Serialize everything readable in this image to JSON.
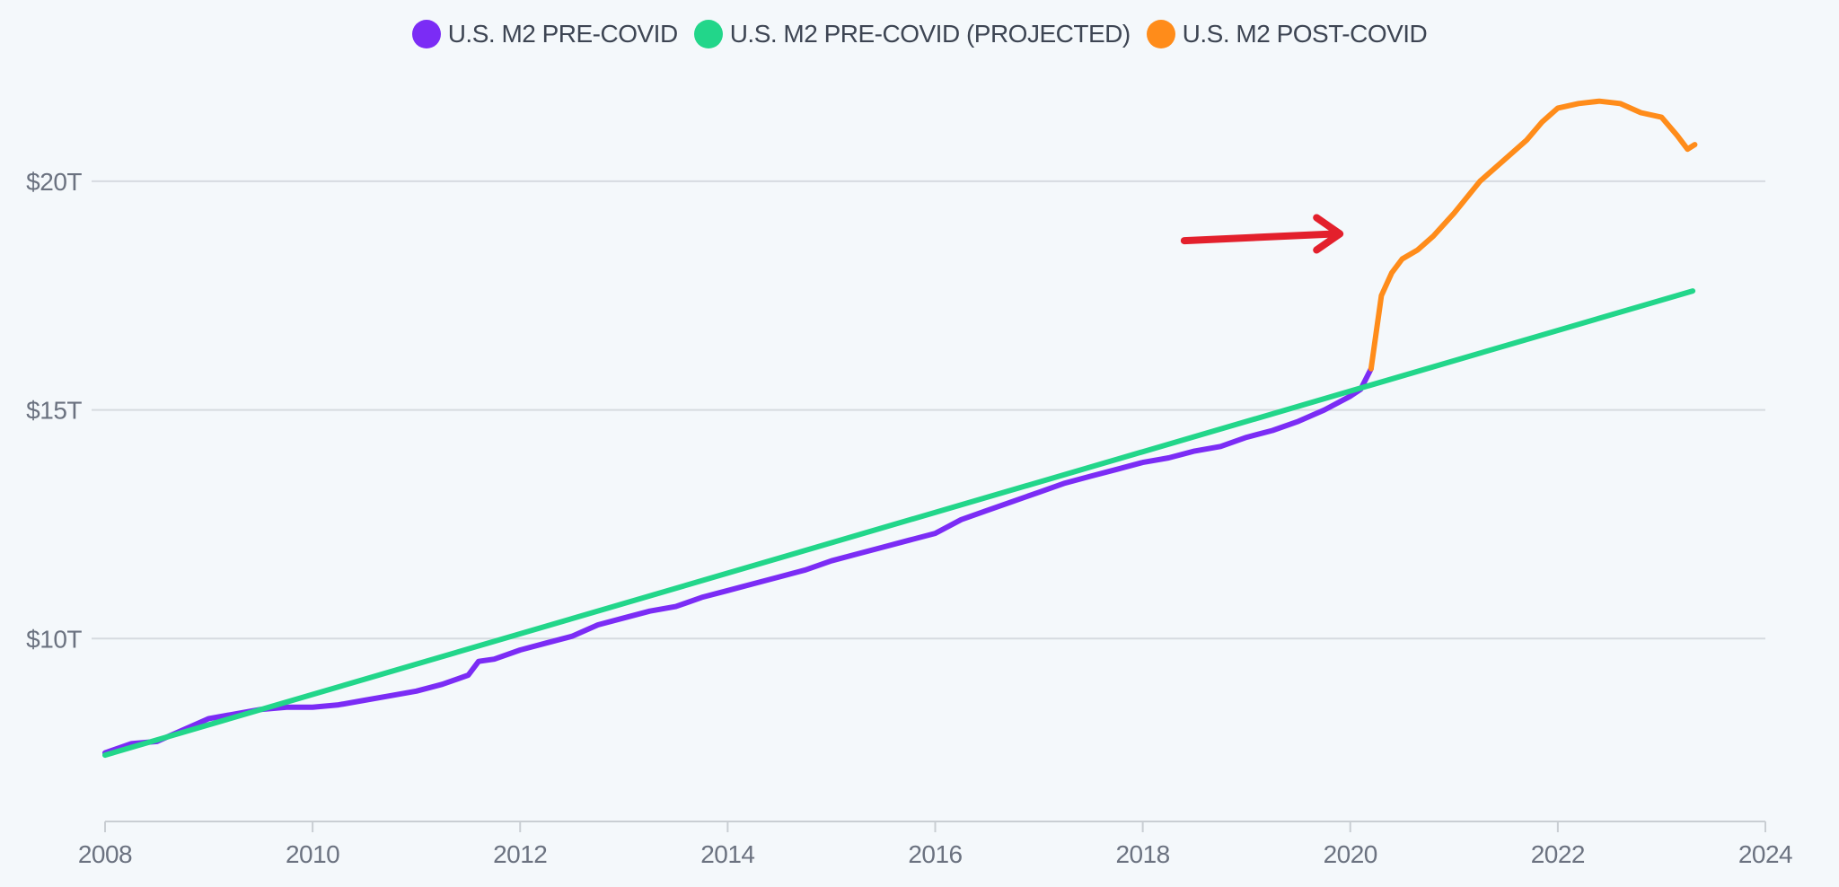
{
  "chart_data": {
    "type": "line",
    "title": "",
    "xlabel": "",
    "ylabel": "",
    "xlim": [
      2008,
      2024
    ],
    "ylim": [
      6,
      22
    ],
    "x_ticks": [
      2008,
      2010,
      2012,
      2014,
      2016,
      2018,
      2020,
      2022,
      2024
    ],
    "x_tick_labels": [
      "2008",
      "2010",
      "2012",
      "2014",
      "2016",
      "2018",
      "2020",
      "2022",
      "2024"
    ],
    "y_ticks": [
      10,
      15,
      20
    ],
    "y_tick_labels": [
      "$10T",
      "$15T",
      "$20T"
    ],
    "grid": true,
    "legend_position": "top-center",
    "series": [
      {
        "name": "U.S. M2 PRE-COVID",
        "color": "#7b2cf5",
        "x": [
          2008.0,
          2008.25,
          2008.5,
          2008.75,
          2009.0,
          2009.25,
          2009.5,
          2009.75,
          2010.0,
          2010.25,
          2010.5,
          2010.75,
          2011.0,
          2011.25,
          2011.5,
          2011.6,
          2011.75,
          2012.0,
          2012.25,
          2012.5,
          2012.75,
          2013.0,
          2013.25,
          2013.5,
          2013.75,
          2014.0,
          2014.25,
          2014.5,
          2014.75,
          2015.0,
          2015.25,
          2015.5,
          2015.75,
          2016.0,
          2016.25,
          2016.5,
          2016.75,
          2017.0,
          2017.25,
          2017.5,
          2017.75,
          2018.0,
          2018.25,
          2018.5,
          2018.75,
          2019.0,
          2019.25,
          2019.5,
          2019.75,
          2020.0,
          2020.1,
          2020.2
        ],
        "values": [
          7.5,
          7.7,
          7.75,
          8.0,
          8.25,
          8.35,
          8.45,
          8.5,
          8.5,
          8.55,
          8.65,
          8.75,
          8.85,
          9.0,
          9.2,
          9.5,
          9.55,
          9.75,
          9.9,
          10.05,
          10.3,
          10.45,
          10.6,
          10.7,
          10.9,
          11.05,
          11.2,
          11.35,
          11.5,
          11.7,
          11.85,
          12.0,
          12.15,
          12.3,
          12.6,
          12.8,
          13.0,
          13.2,
          13.4,
          13.55,
          13.7,
          13.85,
          13.95,
          14.1,
          14.2,
          14.4,
          14.55,
          14.75,
          15.0,
          15.3,
          15.45,
          15.9
        ]
      },
      {
        "name": "U.S. M2 PRE-COVID (PROJECTED)",
        "color": "#22d68a",
        "x": [
          2008.0,
          2023.3
        ],
        "values": [
          7.45,
          17.6
        ]
      },
      {
        "name": "U.S. M2 POST-COVID",
        "color": "#ff8c1a",
        "x": [
          2020.2,
          2020.3,
          2020.4,
          2020.5,
          2020.65,
          2020.8,
          2021.0,
          2021.25,
          2021.5,
          2021.7,
          2021.85,
          2022.0,
          2022.2,
          2022.4,
          2022.6,
          2022.8,
          2023.0,
          2023.15,
          2023.25,
          2023.32
        ],
        "values": [
          15.9,
          17.5,
          18.0,
          18.3,
          18.5,
          18.8,
          19.3,
          20.0,
          20.5,
          20.9,
          21.3,
          21.6,
          21.7,
          21.75,
          21.7,
          21.5,
          21.4,
          21.0,
          20.7,
          20.8
        ]
      }
    ],
    "annotation": {
      "type": "arrow",
      "color": "#e3202c",
      "from": [
        2018.4,
        18.7
      ],
      "to": [
        2019.9,
        18.85
      ]
    }
  }
}
